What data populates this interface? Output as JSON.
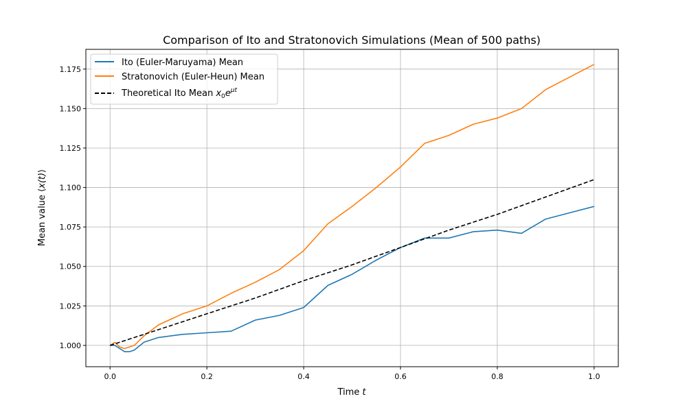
{
  "chart_data": {
    "type": "line",
    "title": "Comparison of Ito and Stratonovich Simulations (Mean of 500 paths)",
    "xlabel": "Time t",
    "ylabel": "Mean value ⟨x(t)⟩",
    "xlim": [
      -0.05,
      1.05
    ],
    "ylim": [
      0.9865,
      1.1875
    ],
    "xticks": [
      0.0,
      0.2,
      0.4,
      0.6,
      0.8,
      1.0
    ],
    "xtick_labels": [
      "0.0",
      "0.2",
      "0.4",
      "0.6",
      "0.8",
      "1.0"
    ],
    "yticks": [
      1.0,
      1.025,
      1.05,
      1.075,
      1.1,
      1.125,
      1.15,
      1.175
    ],
    "ytick_labels": [
      "1.000",
      "1.025",
      "1.050",
      "1.075",
      "1.100",
      "1.125",
      "1.150",
      "1.175"
    ],
    "grid": true,
    "legend_position": "top-left",
    "series": [
      {
        "name": "Ito (Euler-Maruyama) Mean",
        "color": "#1f77b4",
        "style": "solid",
        "x": [
          0,
          0.01,
          0.02,
          0.03,
          0.04,
          0.05,
          0.07,
          0.1,
          0.15,
          0.2,
          0.25,
          0.3,
          0.35,
          0.4,
          0.45,
          0.5,
          0.55,
          0.6,
          0.65,
          0.7,
          0.75,
          0.8,
          0.85,
          0.9,
          0.95,
          1.0
        ],
        "y": [
          1.0,
          1.0,
          0.998,
          0.996,
          0.996,
          0.997,
          1.002,
          1.005,
          1.007,
          1.008,
          1.009,
          1.016,
          1.019,
          1.024,
          1.038,
          1.045,
          1.054,
          1.062,
          1.068,
          1.068,
          1.072,
          1.073,
          1.071,
          1.08,
          1.084,
          1.088
        ]
      },
      {
        "name": "Stratonovich (Euler-Heun) Mean",
        "color": "#ff7f0e",
        "style": "solid",
        "x": [
          0,
          0.01,
          0.02,
          0.03,
          0.05,
          0.07,
          0.1,
          0.15,
          0.2,
          0.25,
          0.3,
          0.35,
          0.4,
          0.45,
          0.5,
          0.55,
          0.6,
          0.65,
          0.7,
          0.75,
          0.8,
          0.85,
          0.9,
          0.95,
          1.0
        ],
        "y": [
          1.0,
          1.002,
          0.999,
          0.998,
          1.0,
          1.006,
          1.013,
          1.02,
          1.025,
          1.033,
          1.04,
          1.048,
          1.06,
          1.077,
          1.088,
          1.1,
          1.113,
          1.128,
          1.133,
          1.14,
          1.144,
          1.15,
          1.162,
          1.17,
          1.178
        ]
      },
      {
        "name": "Theoretical Ito Mean x₀e^{μt}",
        "color": "#000000",
        "style": "dashed",
        "x": [
          0,
          0.1,
          0.2,
          0.3,
          0.4,
          0.5,
          0.6,
          0.7,
          0.8,
          0.9,
          1.0
        ],
        "y": [
          1.0,
          1.01,
          1.02,
          1.03,
          1.041,
          1.051,
          1.062,
          1.073,
          1.083,
          1.094,
          1.105
        ]
      }
    ],
    "legend_labels": {
      "ito": "Ito (Euler-Maruyama) Mean",
      "strat": "Stratonovich (Euler-Heun) Mean",
      "theo_prefix": "Theoretical Ito Mean ",
      "theo_x": "x",
      "theo_sub": "0",
      "theo_e": "e",
      "theo_sup": "μt"
    },
    "xlabel_parts": {
      "text": "Time ",
      "var": "t"
    },
    "ylabel_parts": {
      "text": "Mean value ⟨",
      "var": "x(t)",
      "end": "⟩"
    }
  }
}
